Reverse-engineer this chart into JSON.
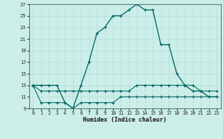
{
  "xlabel": "Humidex (Indice chaleur)",
  "background_color": "#cceee8",
  "grid_color": "#b0ddd8",
  "line_color": "#006666",
  "xlim": [
    -0.5,
    23.5
  ],
  "ylim": [
    9,
    27
  ],
  "yticks": [
    9,
    11,
    13,
    15,
    17,
    19,
    21,
    23,
    25,
    27
  ],
  "xticks": [
    0,
    1,
    2,
    3,
    4,
    5,
    6,
    7,
    8,
    9,
    10,
    11,
    12,
    13,
    14,
    15,
    16,
    17,
    18,
    19,
    20,
    21,
    22,
    23
  ],
  "series": {
    "main": [
      13,
      13,
      13,
      13,
      10,
      9,
      13,
      17,
      22,
      23,
      25,
      25,
      26,
      27,
      26,
      26,
      20,
      20,
      15,
      13,
      12,
      12,
      11,
      11
    ],
    "upper": [
      13,
      12,
      12,
      12,
      12,
      12,
      12,
      12,
      12,
      12,
      12,
      12,
      12,
      13,
      13,
      13,
      13,
      13,
      13,
      13,
      13,
      12,
      12,
      12
    ],
    "lower": [
      13,
      10,
      10,
      10,
      10,
      9,
      10,
      10,
      10,
      10,
      10,
      11,
      11,
      11,
      11,
      11,
      11,
      11,
      11,
      11,
      11,
      11,
      11,
      11
    ]
  }
}
